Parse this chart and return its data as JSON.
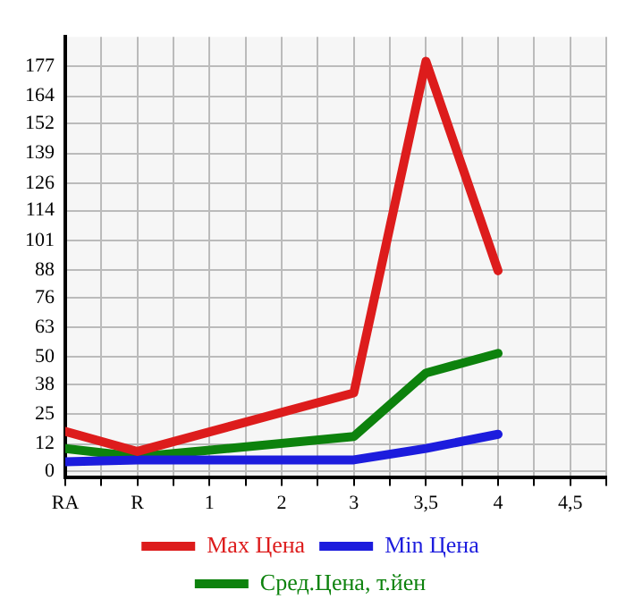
{
  "chart_data": {
    "type": "line",
    "categories": [
      "RA",
      "R",
      "1",
      "2",
      "3",
      "3,5",
      "4",
      "4,5"
    ],
    "series": [
      {
        "name": "Max Цена",
        "color": "#dd1c1c",
        "values": [
          17.5,
          8.7,
          null,
          null,
          34.3,
          179.3,
          87.7,
          null
        ]
      },
      {
        "name": "Min Цена",
        "color": "#1c1cdd",
        "values": [
          4.2,
          5,
          null,
          null,
          5,
          10,
          16.2,
          null
        ]
      },
      {
        "name": "Сред.Цена, т.йен",
        "color": "#0d820d",
        "values": [
          10,
          6.3,
          null,
          null,
          15.2,
          43,
          51.6,
          null
        ]
      }
    ],
    "ylim": [
      -2.5,
      190
    ],
    "yticks": [
      0,
      12,
      25,
      38,
      50,
      63,
      76,
      88,
      101,
      114,
      126,
      139,
      152,
      164,
      177
    ],
    "grid": true,
    "legend": "bottom",
    "marker": "none",
    "line_style": "solid"
  }
}
